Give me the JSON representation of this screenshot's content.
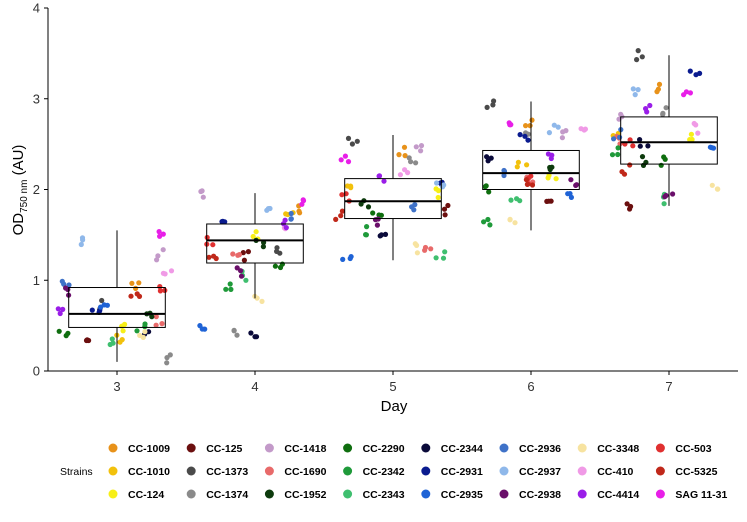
{
  "chart_data": {
    "type": "scatter",
    "subtype": "boxplot-with-jittered-points",
    "xlabel": "Day",
    "ylabel": {
      "main": "OD",
      "subscript": "750 nm",
      "unit": " (AU)"
    },
    "ylim": [
      0,
      4
    ],
    "yticks": [
      0,
      1,
      2,
      3,
      4
    ],
    "categories": [
      "3",
      "4",
      "5",
      "6",
      "7"
    ],
    "grid": false,
    "legend": {
      "title": "Strains",
      "placement": "bottom"
    },
    "boxes": [
      {
        "day": "3",
        "q1": 0.48,
        "median": 0.63,
        "q3": 0.92,
        "whisker_low": 0.1,
        "whisker_high": 1.55
      },
      {
        "day": "4",
        "q1": 1.19,
        "median": 1.44,
        "q3": 1.62,
        "whisker_low": 0.8,
        "whisker_high": 1.96
      },
      {
        "day": "5",
        "q1": 1.68,
        "median": 1.87,
        "q3": 2.12,
        "whisker_low": 1.22,
        "whisker_high": 2.6
      },
      {
        "day": "6",
        "q1": 2.0,
        "median": 2.18,
        "q3": 2.43,
        "whisker_low": 1.55,
        "whisker_high": 2.97
      },
      {
        "day": "7",
        "q1": 2.28,
        "median": 2.52,
        "q3": 2.8,
        "whisker_low": 1.82,
        "whisker_high": 3.48
      }
    ],
    "series": [
      {
        "name": "CC-1009",
        "color": "#e8921a",
        "values": [
          0.95,
          1.78,
          2.42,
          2.72,
          3.12
        ]
      },
      {
        "name": "CC-1010",
        "color": "#f2c10c",
        "values": [
          0.35,
          1.72,
          2.05,
          2.28,
          2.62
        ]
      },
      {
        "name": "CC-124",
        "color": "#f7ef17",
        "values": [
          0.5,
          1.48,
          1.97,
          2.12,
          2.6
        ]
      },
      {
        "name": "CC-125",
        "color": "#6b0f0f",
        "values": [
          0.3,
          1.28,
          1.78,
          1.85,
          1.82
        ]
      },
      {
        "name": "CC-1373",
        "color": "#4a4a4a",
        "values": [
          0.72,
          1.32,
          2.55,
          2.95,
          3.48
        ]
      },
      {
        "name": "CC-1374",
        "color": "#8a8a8a",
        "values": [
          0.12,
          0.42,
          2.35,
          2.6,
          2.85
        ]
      },
      {
        "name": "CC-1418",
        "color": "#c39ac9",
        "values": [
          1.28,
          1.93,
          2.45,
          2.62,
          2.8
        ]
      },
      {
        "name": "CC-1690",
        "color": "#e86a6a",
        "values": [
          0.55,
          1.25,
          1.38,
          2.12,
          2.55
        ]
      },
      {
        "name": "CC-1952",
        "color": "#0d3b0d",
        "values": [
          0.62,
          1.38,
          1.82,
          2.22,
          2.32
        ]
      },
      {
        "name": "CC-2290",
        "color": "#0f6e0f",
        "values": [
          0.38,
          1.12,
          1.72,
          1.98,
          2.3
        ]
      },
      {
        "name": "CC-2342",
        "color": "#1f9a3a",
        "values": [
          0.5,
          0.95,
          1.55,
          1.62,
          2.42
        ]
      },
      {
        "name": "CC-2343",
        "color": "#3fbf6f",
        "values": [
          0.32,
          1.05,
          1.28,
          1.9,
          1.9
        ]
      },
      {
        "name": "CC-2344",
        "color": "#0a0a3a",
        "values": [
          0.45,
          0.38,
          1.45,
          2.32,
          2.52
        ]
      },
      {
        "name": "CC-2931",
        "color": "#0a1b8f",
        "values": [
          0.68,
          1.62,
          2.1,
          2.55,
          3.32
        ]
      },
      {
        "name": "CC-2935",
        "color": "#1f63d6",
        "values": [
          0.72,
          0.52,
          1.25,
          1.92,
          2.45
        ]
      },
      {
        "name": "CC-2936",
        "color": "#3f72c8",
        "values": [
          0.98,
          1.72,
          1.82,
          2.18,
          2.6
        ]
      },
      {
        "name": "CC-2937",
        "color": "#8fb8ea",
        "values": [
          1.42,
          1.8,
          2.05,
          2.65,
          3.05
        ]
      },
      {
        "name": "CC-2938",
        "color": "#6a0f6a",
        "values": [
          0.88,
          1.08,
          1.62,
          2.05,
          1.9
        ]
      },
      {
        "name": "CC-3348",
        "color": "#f7e3a0",
        "values": [
          0.42,
          0.82,
          1.35,
          1.68,
          2.0
        ]
      },
      {
        "name": "CC-410",
        "color": "#f09ae6",
        "values": [
          1.12,
          1.55,
          2.22,
          2.62,
          2.68
        ]
      },
      {
        "name": "CC-4414",
        "color": "#9a1ee8",
        "values": [
          0.68,
          1.62,
          2.15,
          2.38,
          2.88
        ]
      },
      {
        "name": "CC-503",
        "color": "#e03030",
        "values": [
          0.88,
          1.45,
          1.92,
          2.12,
          2.52
        ]
      },
      {
        "name": "CC-5325",
        "color": "#c0281a",
        "values": [
          0.82,
          1.3,
          1.72,
          2.08,
          2.22
        ]
      },
      {
        "name": "SAG 11-31",
        "color": "#e81ee8",
        "values": [
          1.52,
          1.88,
          2.32,
          2.75,
          3.1
        ]
      }
    ]
  },
  "legend_grid": {
    "rows": [
      [
        "CC-1009",
        "CC-125",
        "CC-1418",
        "CC-2290",
        "CC-2344",
        "CC-2936",
        "CC-3348",
        "CC-503"
      ],
      [
        "CC-1010",
        "CC-1373",
        "CC-1690",
        "CC-2342",
        "CC-2931",
        "CC-2937",
        "CC-410",
        "CC-5325"
      ],
      [
        "CC-124",
        "CC-1374",
        "CC-1952",
        "CC-2343",
        "CC-2935",
        "CC-2938",
        "CC-4414",
        "SAG 11-31"
      ]
    ]
  }
}
